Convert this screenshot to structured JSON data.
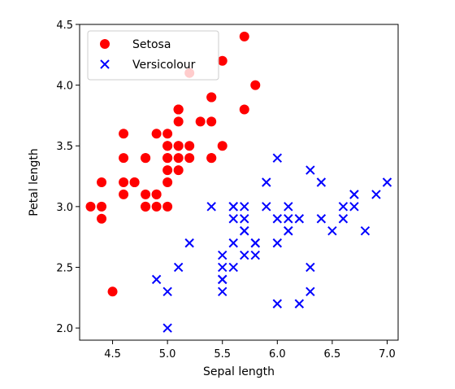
{
  "chart_data": {
    "type": "scatter",
    "xlabel": "Sepal length",
    "ylabel": "Petal length",
    "xlim": [
      4.2,
      7.1
    ],
    "ylim": [
      1.9,
      4.5
    ],
    "xticks": [
      "4.5",
      "5.0",
      "5.5",
      "6.0",
      "6.5",
      "7.0"
    ],
    "yticks": [
      "2.0",
      "2.5",
      "3.0",
      "3.5",
      "4.0",
      "4.5"
    ],
    "grid": false,
    "legend_position": "top-left",
    "series": [
      {
        "name": "Setosa",
        "marker": "circle",
        "color": "#ff0000",
        "points": [
          [
            5.1,
            3.5
          ],
          [
            4.9,
            3.0
          ],
          [
            4.7,
            3.2
          ],
          [
            4.6,
            3.1
          ],
          [
            5.0,
            3.6
          ],
          [
            5.4,
            3.9
          ],
          [
            4.6,
            3.4
          ],
          [
            5.0,
            3.4
          ],
          [
            4.4,
            2.9
          ],
          [
            4.9,
            3.1
          ],
          [
            5.4,
            3.7
          ],
          [
            4.8,
            3.4
          ],
          [
            4.8,
            3.0
          ],
          [
            4.3,
            3.0
          ],
          [
            5.8,
            4.0
          ],
          [
            5.7,
            4.4
          ],
          [
            5.4,
            3.9
          ],
          [
            5.1,
            3.5
          ],
          [
            5.7,
            3.8
          ],
          [
            5.1,
            3.8
          ],
          [
            5.4,
            3.4
          ],
          [
            5.1,
            3.7
          ],
          [
            4.6,
            3.6
          ],
          [
            5.1,
            3.3
          ],
          [
            4.8,
            3.4
          ],
          [
            5.0,
            3.0
          ],
          [
            5.0,
            3.4
          ],
          [
            5.2,
            3.5
          ],
          [
            5.2,
            3.4
          ],
          [
            4.7,
            3.2
          ],
          [
            4.8,
            3.1
          ],
          [
            5.4,
            3.4
          ],
          [
            5.2,
            4.1
          ],
          [
            5.5,
            4.2
          ],
          [
            4.9,
            3.1
          ],
          [
            5.0,
            3.2
          ],
          [
            5.5,
            3.5
          ],
          [
            4.9,
            3.6
          ],
          [
            4.4,
            3.0
          ],
          [
            5.1,
            3.4
          ],
          [
            5.0,
            3.5
          ],
          [
            4.5,
            2.3
          ],
          [
            4.4,
            3.2
          ],
          [
            5.0,
            3.5
          ],
          [
            5.1,
            3.8
          ],
          [
            4.8,
            3.0
          ],
          [
            5.1,
            3.8
          ],
          [
            4.6,
            3.2
          ],
          [
            5.3,
            3.7
          ],
          [
            5.0,
            3.3
          ]
        ]
      },
      {
        "name": "Versicolour",
        "marker": "x",
        "color": "#0000ff",
        "points": [
          [
            7.0,
            3.2
          ],
          [
            6.4,
            3.2
          ],
          [
            6.9,
            3.1
          ],
          [
            5.5,
            2.3
          ],
          [
            6.5,
            2.8
          ],
          [
            5.7,
            2.8
          ],
          [
            6.3,
            3.3
          ],
          [
            4.9,
            2.4
          ],
          [
            6.6,
            2.9
          ],
          [
            5.2,
            2.7
          ],
          [
            5.0,
            2.0
          ],
          [
            5.9,
            3.0
          ],
          [
            6.0,
            2.2
          ],
          [
            6.1,
            2.9
          ],
          [
            5.6,
            2.9
          ],
          [
            6.7,
            3.1
          ],
          [
            5.6,
            3.0
          ],
          [
            5.8,
            2.7
          ],
          [
            6.2,
            2.2
          ],
          [
            5.6,
            2.5
          ],
          [
            5.9,
            3.2
          ],
          [
            6.1,
            2.8
          ],
          [
            6.3,
            2.5
          ],
          [
            6.1,
            2.8
          ],
          [
            6.4,
            2.9
          ],
          [
            6.6,
            3.0
          ],
          [
            6.8,
            2.8
          ],
          [
            6.7,
            3.0
          ],
          [
            6.0,
            2.9
          ],
          [
            5.7,
            2.6
          ],
          [
            5.5,
            2.4
          ],
          [
            5.5,
            2.4
          ],
          [
            5.8,
            2.7
          ],
          [
            6.0,
            2.7
          ],
          [
            5.4,
            3.0
          ],
          [
            6.0,
            3.4
          ],
          [
            6.7,
            3.1
          ],
          [
            6.3,
            2.3
          ],
          [
            5.6,
            3.0
          ],
          [
            5.5,
            2.5
          ],
          [
            5.5,
            2.6
          ],
          [
            6.1,
            3.0
          ],
          [
            5.8,
            2.6
          ],
          [
            5.0,
            2.3
          ],
          [
            5.6,
            2.7
          ],
          [
            5.7,
            3.0
          ],
          [
            5.7,
            2.9
          ],
          [
            6.2,
            2.9
          ],
          [
            5.1,
            2.5
          ],
          [
            5.7,
            2.8
          ]
        ]
      }
    ]
  }
}
